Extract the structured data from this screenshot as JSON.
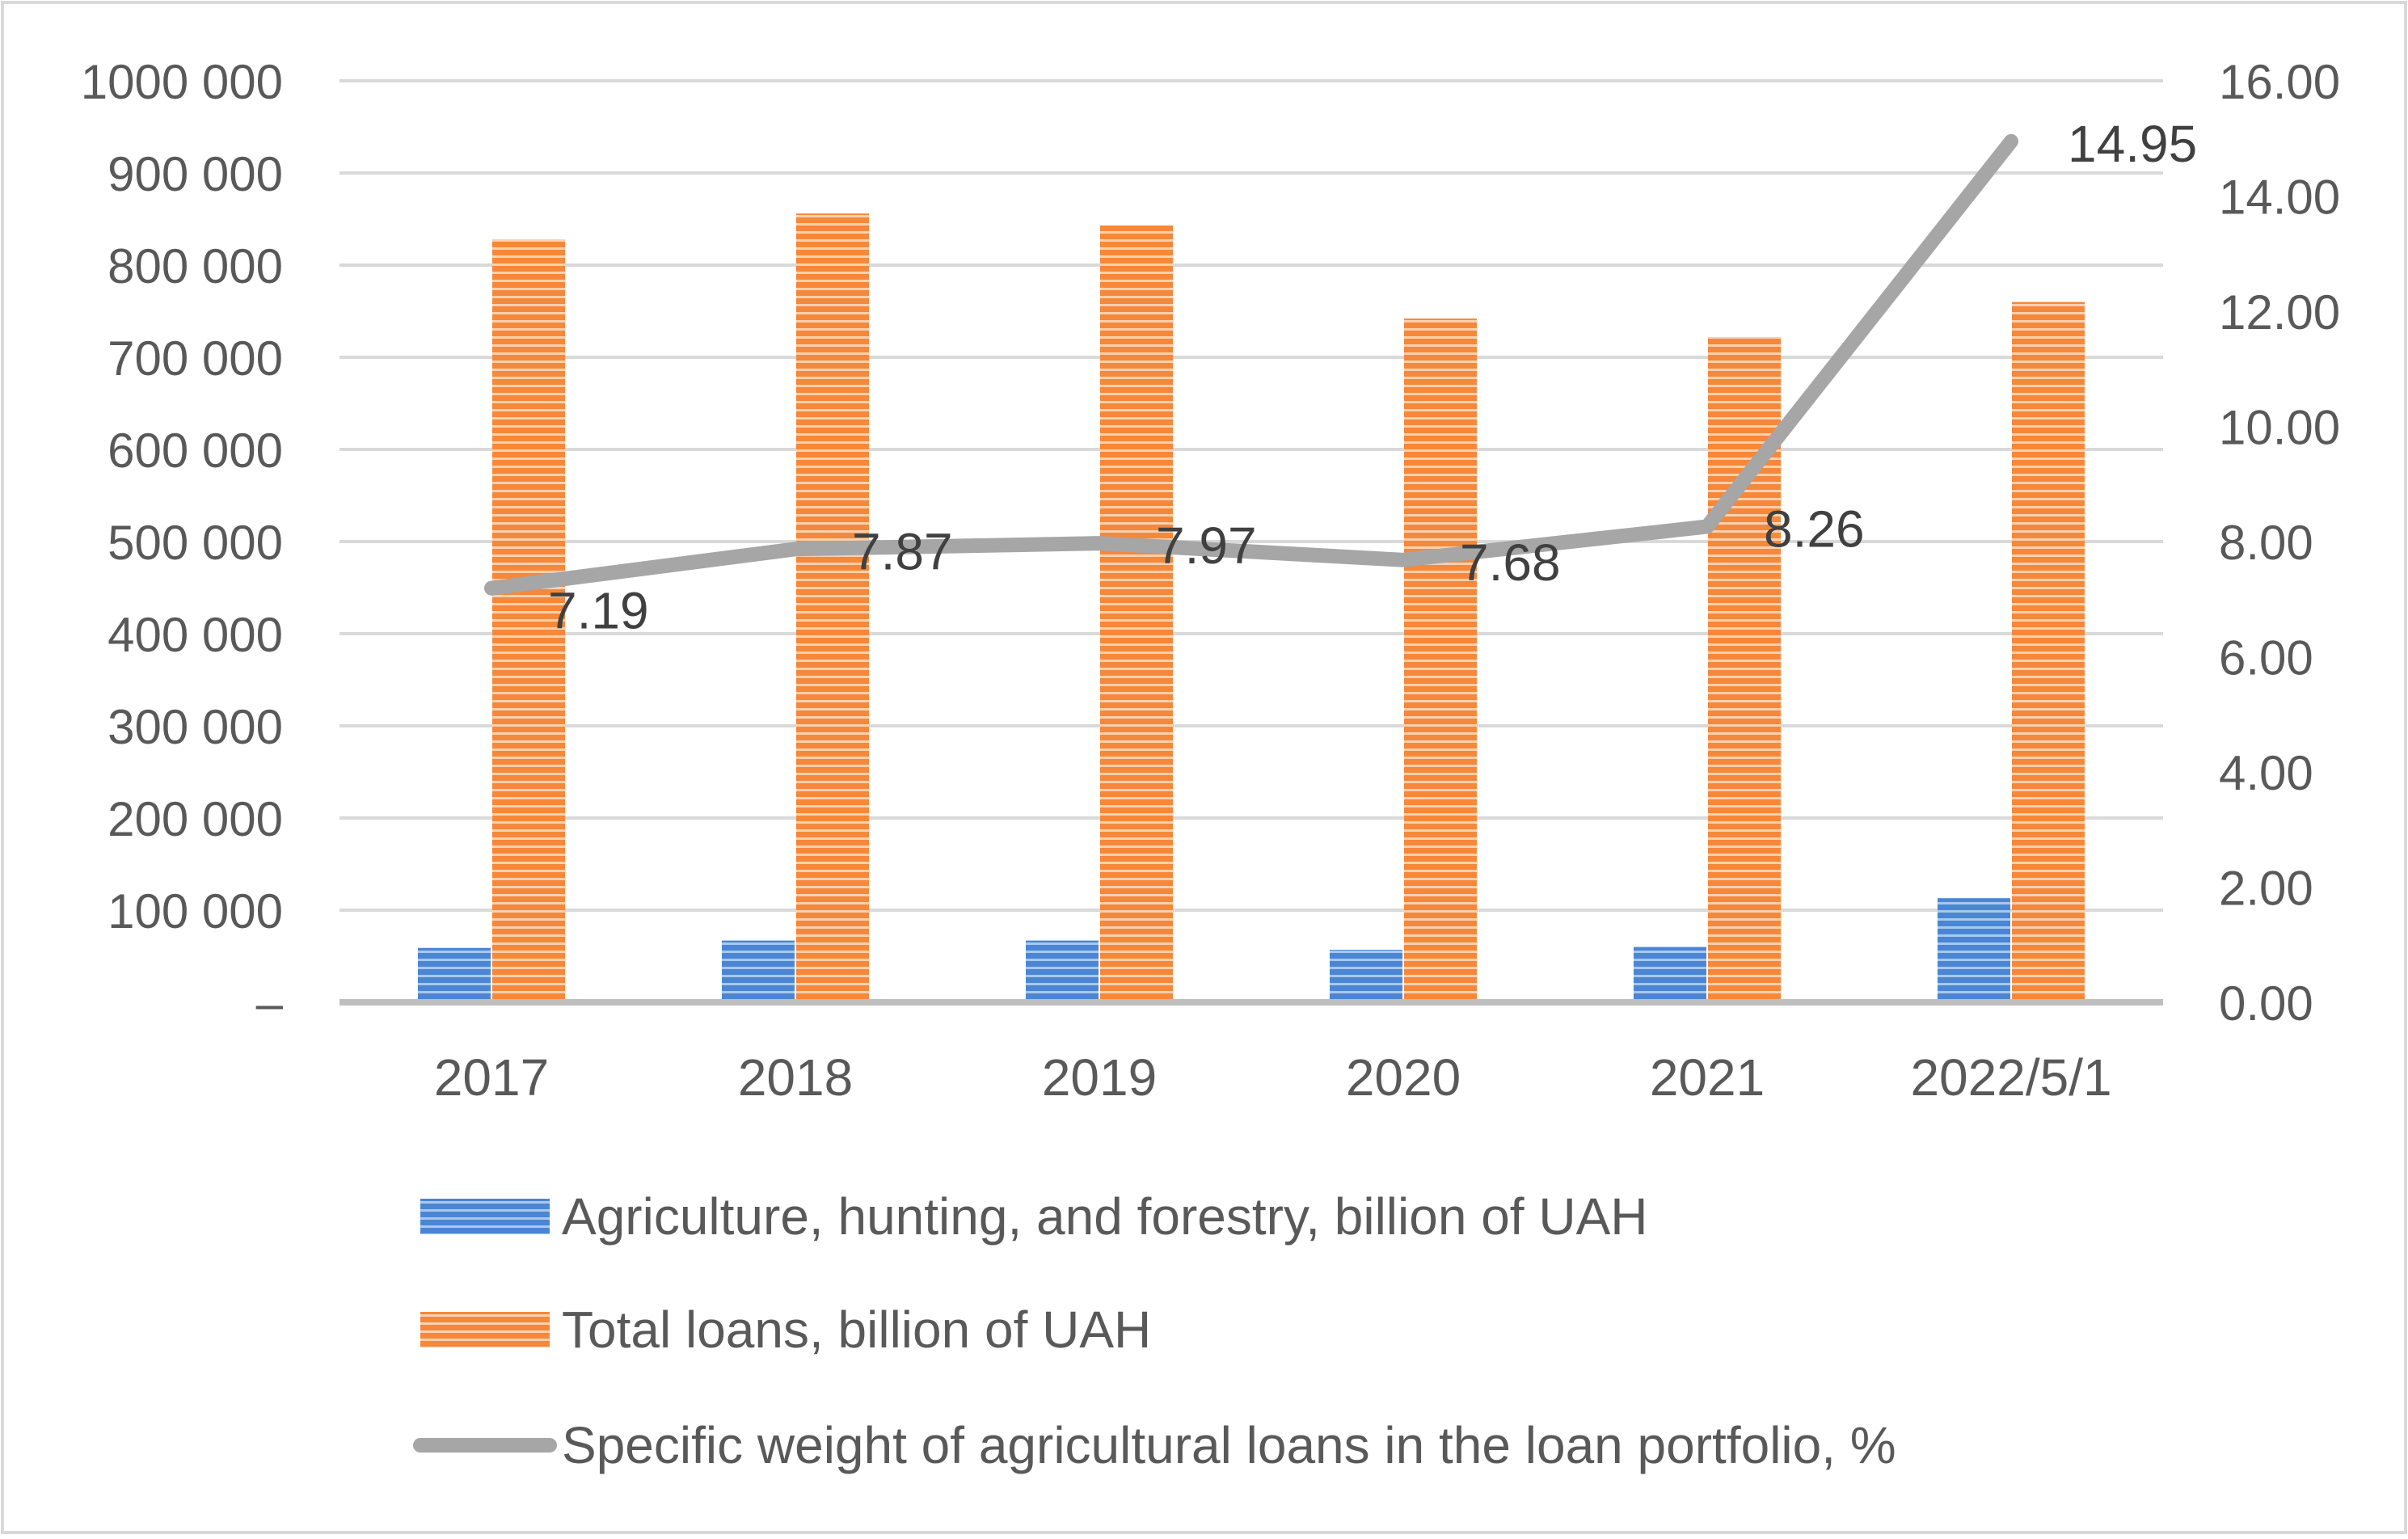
{
  "chart_data": {
    "type": "bar",
    "categories": [
      "2017",
      "2018",
      "2019",
      "2020",
      "2021",
      "2022/5/1"
    ],
    "series": [
      {
        "name": "Agriculture, hunting, and forestry, billion of UAH",
        "type": "bar",
        "axis": "left",
        "color": "#4a86d4",
        "values": [
          59000,
          67000,
          67000,
          57000,
          60000,
          113000
        ]
      },
      {
        "name": "Total loans, billion of UAH",
        "type": "bar",
        "axis": "right-none",
        "color": "#f5883a",
        "values": [
          828000,
          856000,
          843000,
          742000,
          722000,
          760000
        ]
      },
      {
        "name": "Specific weight of agricultural loans in the loan portfolio, %",
        "type": "line",
        "axis": "right",
        "color": "#a6a6a6",
        "values": [
          7.19,
          7.87,
          7.97,
          7.68,
          8.26,
          14.95
        ],
        "labels": [
          "7.19",
          "7.87",
          "7.97",
          "7.68",
          "8.26",
          "14.95"
        ]
      }
    ],
    "y_left": {
      "range": [
        0,
        1000000
      ],
      "ticks": [
        "–",
        "100 000",
        "200 000",
        "300 000",
        "400 000",
        "500 000",
        "600 000",
        "700 000",
        "800 000",
        "900 000",
        "1000 000"
      ]
    },
    "y_right": {
      "range": [
        0,
        16
      ],
      "ticks": [
        "0.00",
        "2.00",
        "4.00",
        "6.00",
        "8.00",
        "10.00",
        "12.00",
        "14.00",
        "16.00"
      ]
    },
    "grid": true,
    "legend_position": "bottom",
    "title": "",
    "xlabel": "",
    "ylabel": ""
  }
}
